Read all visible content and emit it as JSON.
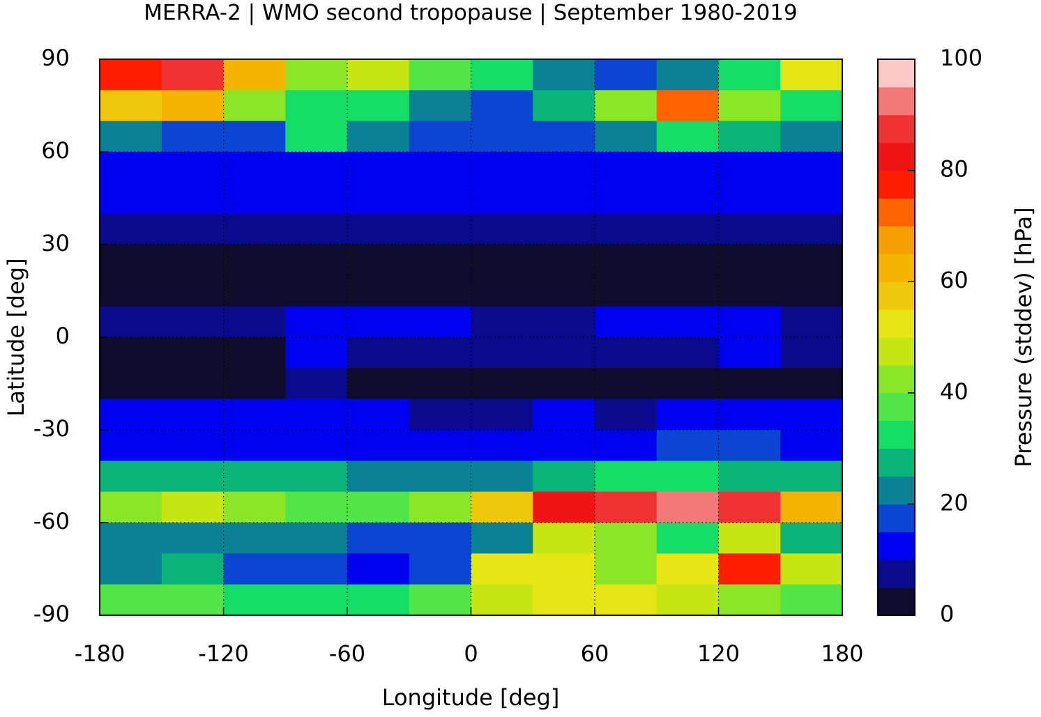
{
  "chart_data": {
    "type": "heatmap",
    "title": "MERRA-2 | WMO second tropopause | September 1980-2019",
    "xlabel": "Longitude [deg]",
    "ylabel": "Latitude [deg]",
    "colorbar_label": "Pressure (stddev) [hPa]",
    "x": [
      -165,
      -135,
      -105,
      -75,
      -45,
      -15,
      15,
      45,
      75,
      105,
      135,
      165
    ],
    "y": [
      85,
      75,
      65,
      55,
      45,
      35,
      25,
      15,
      5,
      -5,
      -15,
      -25,
      -35,
      -45,
      -55,
      -65,
      -75,
      -85
    ],
    "z": [
      [
        75,
        85,
        60,
        40,
        45,
        35,
        30,
        20,
        15,
        20,
        30,
        50
      ],
      [
        55,
        60,
        40,
        30,
        30,
        20,
        15,
        25,
        40,
        70,
        40,
        30
      ],
      [
        20,
        15,
        15,
        30,
        20,
        15,
        15,
        15,
        20,
        30,
        25,
        20
      ],
      [
        12,
        12,
        12,
        12,
        12,
        10,
        12,
        12,
        12,
        10,
        12,
        12
      ],
      [
        10,
        10,
        10,
        10,
        10,
        10,
        10,
        10,
        10,
        10,
        10,
        10
      ],
      [
        8,
        8,
        8,
        8,
        8,
        8,
        8,
        8,
        8,
        8,
        8,
        8
      ],
      [
        3,
        3,
        3,
        3,
        3,
        3,
        3,
        3,
        3,
        3,
        3,
        3
      ],
      [
        2,
        2,
        2,
        2,
        2,
        2,
        2,
        2,
        2,
        2,
        2,
        2
      ],
      [
        8,
        8,
        8,
        12,
        12,
        10,
        8,
        8,
        12,
        10,
        12,
        8
      ],
      [
        3,
        3,
        3,
        10,
        8,
        5,
        5,
        5,
        5,
        8,
        10,
        5
      ],
      [
        3,
        3,
        3,
        5,
        3,
        3,
        3,
        3,
        3,
        3,
        3,
        3
      ],
      [
        10,
        10,
        10,
        10,
        12,
        8,
        8,
        10,
        8,
        10,
        10,
        10
      ],
      [
        12,
        12,
        12,
        12,
        12,
        12,
        12,
        12,
        12,
        15,
        15,
        12
      ],
      [
        25,
        25,
        25,
        25,
        22,
        20,
        22,
        25,
        30,
        30,
        25,
        25
      ],
      [
        40,
        45,
        40,
        35,
        35,
        40,
        55,
        80,
        85,
        90,
        85,
        60
      ],
      [
        20,
        20,
        22,
        20,
        18,
        18,
        20,
        45,
        40,
        30,
        45,
        25
      ],
      [
        20,
        25,
        15,
        15,
        12,
        15,
        50,
        50,
        40,
        50,
        75,
        45
      ],
      [
        35,
        35,
        30,
        30,
        30,
        35,
        45,
        50,
        50,
        45,
        40,
        35
      ]
    ],
    "xlim": [
      -180,
      180
    ],
    "ylim": [
      -90,
      90
    ],
    "xticks": [
      -180,
      -120,
      -60,
      0,
      60,
      120,
      180
    ],
    "yticks": [
      -90,
      -60,
      -30,
      0,
      30,
      60,
      90
    ],
    "clim": [
      0,
      100
    ],
    "colorbar_ticks": [
      0,
      20,
      40,
      60,
      80,
      100
    ],
    "colors": [
      "#0d0d2b",
      "#0a0a8c",
      "#0000f0",
      "#0a46d2",
      "#0a8296",
      "#0ab478",
      "#14dc64",
      "#50e646",
      "#8ce628",
      "#c8e614",
      "#e6e614",
      "#f0c80a",
      "#f5b400",
      "#f5a000",
      "#ff6400",
      "#ff1e00",
      "#f01414",
      "#f03232",
      "#f57878",
      "#ffc8c8"
    ],
    "grid": true
  }
}
